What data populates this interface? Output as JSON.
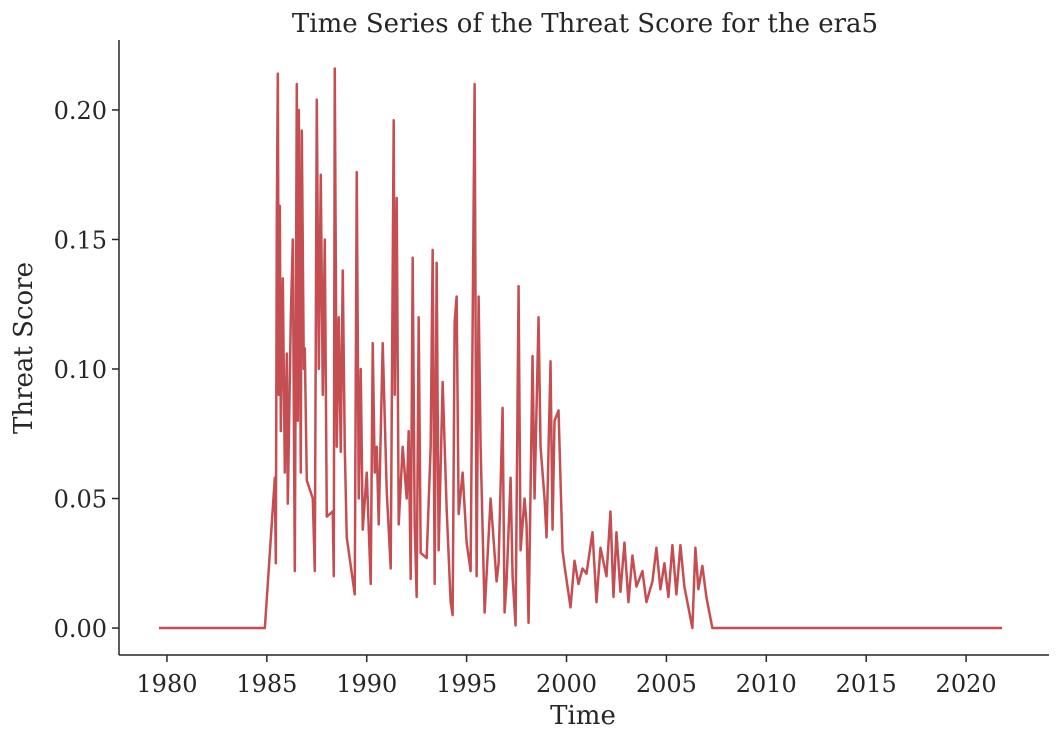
{
  "chart_data": {
    "type": "line",
    "title": "Time Series of the Threat Score for the era5",
    "xlabel": "Time",
    "ylabel": "Threat Score",
    "x": [
      1979.6,
      1984.9,
      1985.4,
      1985.45,
      1985.5,
      1985.55,
      1985.6,
      1985.65,
      1985.7,
      1985.8,
      1985.9,
      1986.0,
      1986.05,
      1986.2,
      1986.3,
      1986.4,
      1986.5,
      1986.55,
      1986.6,
      1986.7,
      1986.75,
      1986.85,
      1986.9,
      1987.0,
      1987.3,
      1987.4,
      1987.5,
      1987.6,
      1987.7,
      1987.8,
      1987.9,
      1988.0,
      1988.3,
      1988.35,
      1988.4,
      1988.5,
      1988.6,
      1988.7,
      1988.8,
      1988.9,
      1989.0,
      1989.4,
      1989.5,
      1989.6,
      1989.7,
      1989.8,
      1990.0,
      1990.2,
      1990.3,
      1990.4,
      1990.5,
      1990.6,
      1990.8,
      1991.0,
      1991.2,
      1991.35,
      1991.4,
      1991.5,
      1991.6,
      1991.8,
      1992.0,
      1992.1,
      1992.2,
      1992.3,
      1992.4,
      1992.5,
      1992.6,
      1992.7,
      1993.0,
      1993.2,
      1993.3,
      1993.4,
      1993.5,
      1993.6,
      1993.8,
      1994.0,
      1994.2,
      1994.3,
      1994.4,
      1994.5,
      1994.6,
      1994.8,
      1995.0,
      1995.2,
      1995.4,
      1995.5,
      1995.6,
      1995.7,
      1995.9,
      1996.2,
      1996.5,
      1996.6,
      1996.8,
      1996.9,
      1997.0,
      1997.2,
      1997.3,
      1997.45,
      1997.6,
      1997.7,
      1997.9,
      1998.0,
      1998.1,
      1998.3,
      1998.4,
      1998.6,
      1998.7,
      1998.9,
      1999.0,
      1999.2,
      1999.3,
      1999.4,
      1999.6,
      1999.8,
      1999.9,
      2000.2,
      2000.4,
      2000.6,
      2000.8,
      2001.0,
      2001.3,
      2001.5,
      2001.7,
      2002.0,
      2002.2,
      2002.35,
      2002.5,
      2002.7,
      2002.9,
      2003.1,
      2003.3,
      2003.5,
      2003.8,
      2004.0,
      2004.3,
      2004.5,
      2004.7,
      2004.9,
      2005.1,
      2005.3,
      2005.5,
      2005.7,
      2005.9,
      2006.1,
      2006.3,
      2006.45,
      2006.6,
      2006.8,
      2007.0,
      2007.3,
      2021.8
    ],
    "series": [
      {
        "color": "#c44e52",
        "values": [
          0,
          0,
          0.058,
          0.025,
          0.16,
          0.214,
          0.09,
          0.163,
          0.076,
          0.135,
          0.06,
          0.106,
          0.048,
          0.12,
          0.15,
          0.022,
          0.21,
          0.08,
          0.2,
          0.06,
          0.192,
          0.1,
          0.108,
          0.057,
          0.05,
          0.022,
          0.204,
          0.1,
          0.175,
          0.09,
          0.15,
          0.043,
          0.045,
          0.02,
          0.216,
          0.07,
          0.12,
          0.068,
          0.138,
          0.07,
          0.035,
          0.013,
          0.176,
          0.05,
          0.1,
          0.038,
          0.06,
          0.017,
          0.11,
          0.06,
          0.07,
          0.04,
          0.11,
          0.053,
          0.023,
          0.196,
          0.09,
          0.166,
          0.04,
          0.07,
          0.05,
          0.076,
          0.019,
          0.143,
          0.04,
          0.012,
          0.12,
          0.029,
          0.027,
          0.07,
          0.146,
          0.017,
          0.141,
          0.03,
          0.095,
          0.046,
          0.01,
          0.005,
          0.118,
          0.128,
          0.044,
          0.06,
          0.033,
          0.022,
          0.21,
          0.02,
          0.128,
          0.07,
          0.006,
          0.05,
          0.018,
          0.025,
          0.085,
          0.006,
          0.018,
          0.058,
          0.02,
          0.001,
          0.132,
          0.03,
          0.05,
          0.04,
          0.002,
          0.105,
          0.05,
          0.12,
          0.07,
          0.05,
          0.035,
          0.103,
          0.038,
          0.08,
          0.084,
          0.03,
          0.024,
          0.008,
          0.026,
          0.017,
          0.023,
          0.021,
          0.037,
          0.01,
          0.031,
          0.02,
          0.045,
          0.012,
          0.037,
          0.014,
          0.033,
          0.01,
          0.028,
          0.016,
          0.022,
          0.01,
          0.018,
          0.031,
          0.015,
          0.025,
          0.012,
          0.032,
          0.013,
          0.032,
          0.016,
          0.008,
          0,
          0.031,
          0.015,
          0.024,
          0.012,
          0,
          0
        ]
      }
    ],
    "xlim": [
      1977.6,
      2024.15
    ],
    "ylim": [
      -0.0104,
      0.227
    ],
    "xticks": [
      1980,
      1985,
      1990,
      1995,
      2000,
      2005,
      2010,
      2015,
      2020
    ],
    "yticks": [
      {
        "value": 0,
        "label": "0.00"
      },
      {
        "value": 0.05,
        "label": "0.05"
      },
      {
        "value": 0.1,
        "label": "0.10"
      },
      {
        "value": 0.15,
        "label": "0.15"
      },
      {
        "value": 0.2,
        "label": "0.20"
      }
    ],
    "grid": false
  }
}
